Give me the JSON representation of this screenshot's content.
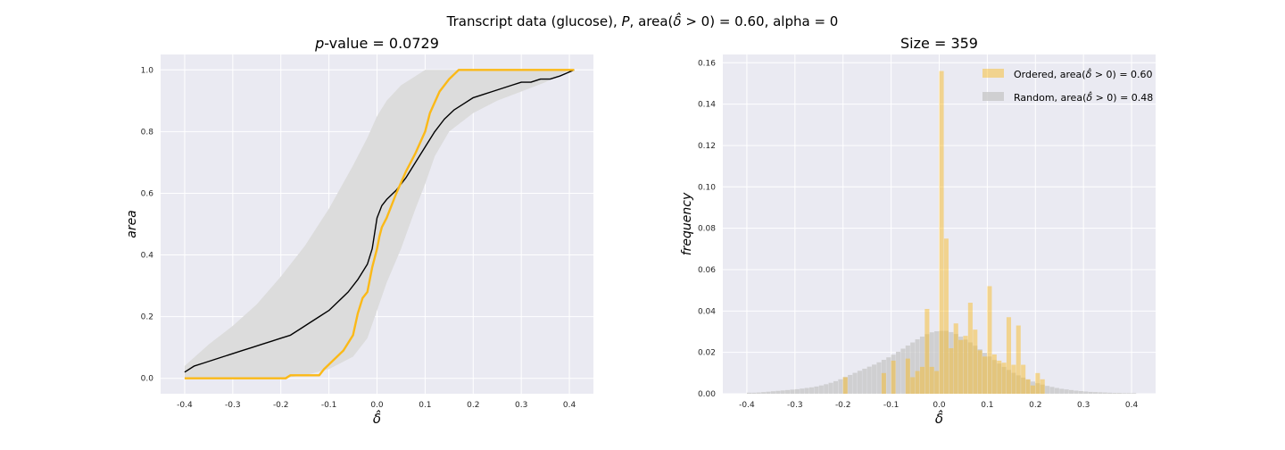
{
  "figure": {
    "suptitle": "Transcript data (glucose), P, area(δ̂ > 0) = 0.60, alpha = 0",
    "colors": {
      "ordered": "#fbb917",
      "random": "#000000",
      "band": "#dcdcdc",
      "axes_bg": "#eaeaf2",
      "grid": "#ffffff",
      "hist_random": "#c8c8c8"
    }
  },
  "chart_data": [
    {
      "type": "line",
      "title": "p-value = 0.0729",
      "xlabel": "δ̂",
      "ylabel": "area",
      "xlim": [
        -0.45,
        0.45
      ],
      "ylim": [
        -0.05,
        1.05
      ],
      "xticks": [
        "-0.4",
        "-0.3",
        "-0.2",
        "-0.1",
        "0.0",
        "0.1",
        "0.2",
        "0.3",
        "0.4"
      ],
      "yticks": [
        "0.0",
        "0.2",
        "0.4",
        "0.6",
        "0.8",
        "1.0"
      ],
      "grid": true,
      "series": [
        {
          "role": "random-mean",
          "color": "#000000",
          "x": [
            -0.4,
            -0.38,
            -0.36,
            -0.34,
            -0.32,
            -0.3,
            -0.28,
            -0.26,
            -0.24,
            -0.22,
            -0.2,
            -0.18,
            -0.16,
            -0.14,
            -0.12,
            -0.1,
            -0.08,
            -0.06,
            -0.04,
            -0.02,
            -0.01,
            0.0,
            0.01,
            0.02,
            0.04,
            0.06,
            0.08,
            0.1,
            0.12,
            0.14,
            0.16,
            0.18,
            0.2,
            0.22,
            0.24,
            0.26,
            0.28,
            0.3,
            0.32,
            0.34,
            0.36,
            0.38,
            0.41
          ],
          "y": [
            0.02,
            0.04,
            0.05,
            0.06,
            0.07,
            0.08,
            0.09,
            0.1,
            0.11,
            0.12,
            0.13,
            0.14,
            0.16,
            0.18,
            0.2,
            0.22,
            0.25,
            0.28,
            0.32,
            0.37,
            0.42,
            0.52,
            0.56,
            0.58,
            0.61,
            0.65,
            0.7,
            0.75,
            0.8,
            0.84,
            0.87,
            0.89,
            0.91,
            0.92,
            0.93,
            0.94,
            0.95,
            0.96,
            0.96,
            0.97,
            0.97,
            0.98,
            1.0
          ]
        },
        {
          "role": "random-band",
          "color": "#dcdcdc",
          "x": [
            -0.4,
            -0.35,
            -0.3,
            -0.25,
            -0.2,
            -0.15,
            -0.1,
            -0.05,
            -0.02,
            0.0,
            0.02,
            0.05,
            0.08,
            0.1,
            0.12,
            0.15,
            0.2,
            0.25,
            0.3,
            0.35,
            0.4
          ],
          "lower": [
            0.0,
            0.0,
            0.0,
            0.0,
            0.0,
            0.01,
            0.03,
            0.07,
            0.13,
            0.22,
            0.31,
            0.42,
            0.55,
            0.63,
            0.72,
            0.8,
            0.86,
            0.9,
            0.93,
            0.96,
            1.0
          ],
          "upper": [
            0.04,
            0.11,
            0.17,
            0.24,
            0.33,
            0.43,
            0.55,
            0.69,
            0.78,
            0.85,
            0.9,
            0.95,
            0.98,
            1.0,
            1.0,
            1.0,
            1.0,
            1.0,
            1.0,
            1.0,
            1.0
          ]
        },
        {
          "role": "ordered",
          "color": "#fbb917",
          "x": [
            -0.4,
            -0.19,
            -0.18,
            -0.12,
            -0.11,
            -0.09,
            -0.07,
            -0.05,
            -0.04,
            -0.03,
            -0.02,
            -0.01,
            0.0,
            0.005,
            0.01,
            0.02,
            0.04,
            0.06,
            0.07,
            0.08,
            0.1,
            0.11,
            0.13,
            0.15,
            0.17,
            0.41
          ],
          "y": [
            0.0,
            0.0,
            0.01,
            0.01,
            0.03,
            0.06,
            0.09,
            0.14,
            0.21,
            0.26,
            0.28,
            0.36,
            0.42,
            0.46,
            0.49,
            0.52,
            0.6,
            0.67,
            0.7,
            0.73,
            0.8,
            0.86,
            0.93,
            0.97,
            1.0,
            1.0
          ]
        }
      ]
    },
    {
      "type": "bar",
      "title": "Size = 359",
      "xlabel": "δ̂",
      "ylabel": "frequency",
      "xlim": [
        -0.45,
        0.45
      ],
      "ylim": [
        0,
        0.164
      ],
      "xticks": [
        "-0.4",
        "-0.3",
        "-0.2",
        "-0.1",
        "0.0",
        "0.1",
        "0.2",
        "0.3",
        "0.4"
      ],
      "yticks": [
        "0.00",
        "0.02",
        "0.04",
        "0.06",
        "0.08",
        "0.10",
        "0.12",
        "0.14",
        "0.16"
      ],
      "grid": true,
      "legend_position": "top-right",
      "series": [
        {
          "name": "Ordered, area(δ̂ > 0) = 0.60",
          "color": "#fbb917",
          "bin_start": -0.4,
          "bin_width": 0.01,
          "values": [
            0,
            0,
            0,
            0,
            0,
            0,
            0,
            0,
            0,
            0,
            0,
            0,
            0,
            0,
            0,
            0,
            0,
            0,
            0,
            0,
            0.008,
            0,
            0,
            0,
            0,
            0,
            0,
            0,
            0.01,
            0,
            0.016,
            0,
            0,
            0.017,
            0.008,
            0.011,
            0.013,
            0.041,
            0.013,
            0.011,
            0.156,
            0.075,
            0.022,
            0.034,
            0.026,
            0.028,
            0.044,
            0.031,
            0.021,
            0.018,
            0.052,
            0.019,
            0.016,
            0.015,
            0.037,
            0.014,
            0.033,
            0.014,
            0.007,
            0.004,
            0.01,
            0.007,
            0,
            0,
            0,
            0,
            0,
            0,
            0,
            0,
            0,
            0,
            0,
            0,
            0,
            0,
            0,
            0,
            0,
            0,
            0
          ]
        },
        {
          "name": "Random, area(δ̂ > 0) = 0.48",
          "color": "#c8c8c8",
          "bin_start": -0.4,
          "bin_width": 0.01,
          "values": [
            0.0005,
            0.0005,
            0.0006,
            0.0008,
            0.001,
            0.0012,
            0.0014,
            0.0016,
            0.0018,
            0.002,
            0.0022,
            0.0025,
            0.0028,
            0.0031,
            0.0035,
            0.004,
            0.0046,
            0.0053,
            0.0061,
            0.007,
            0.0081,
            0.0091,
            0.0101,
            0.0111,
            0.0121,
            0.0131,
            0.0141,
            0.0152,
            0.0164,
            0.0176,
            0.0189,
            0.0203,
            0.0218,
            0.0233,
            0.0248,
            0.0263,
            0.0276,
            0.0288,
            0.0297,
            0.0302,
            0.0304,
            0.0304,
            0.0298,
            0.0289,
            0.0276,
            0.0262,
            0.0248,
            0.0232,
            0.0215,
            0.0198,
            0.018,
            0.0163,
            0.0146,
            0.013,
            0.0115,
            0.0101,
            0.0089,
            0.0078,
            0.0068,
            0.0059,
            0.0051,
            0.0044,
            0.0038,
            0.0033,
            0.0028,
            0.0024,
            0.0021,
            0.0018,
            0.0015,
            0.0013,
            0.0011,
            0.0009,
            0.0008,
            0.0007,
            0.0006,
            0.0005,
            0.0004,
            0.0004,
            0.0003,
            0.0003,
            0.0003
          ]
        }
      ]
    }
  ]
}
